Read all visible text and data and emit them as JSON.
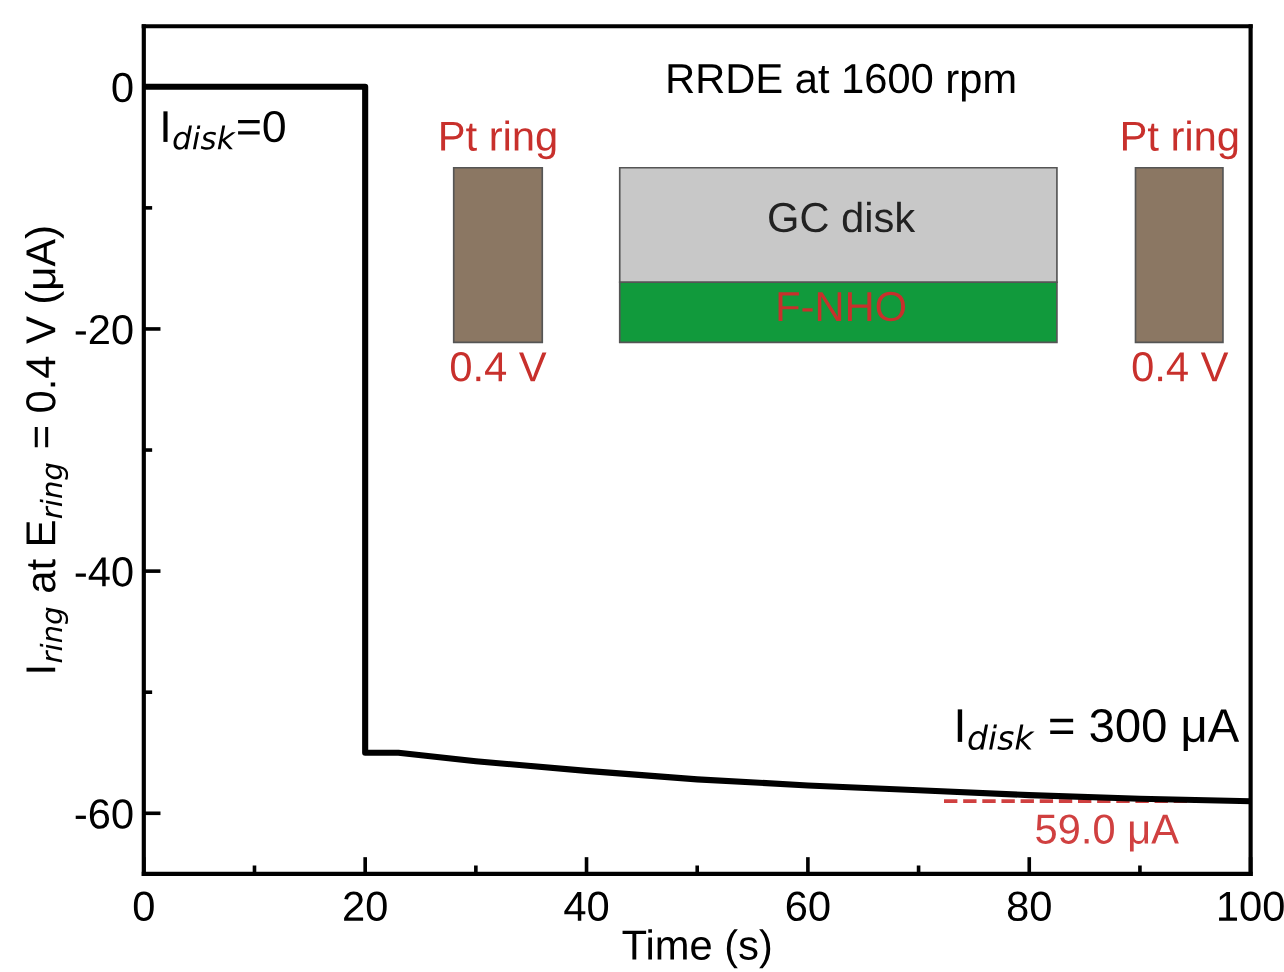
{
  "chart_data": {
    "type": "line",
    "xlabel": "Time (s)",
    "ylabel": "I$_{ring}$ at E$_{ring}$ = 0.4 V (μA)",
    "xlim": [
      0,
      100
    ],
    "ylim": [
      -65,
      5
    ],
    "xticks": [
      0,
      20,
      40,
      60,
      80,
      100
    ],
    "yticks": [
      0,
      -20,
      -40,
      -60
    ],
    "grid": false,
    "legend": false,
    "marker": "none",
    "line_style": "solid",
    "series": [
      {
        "color": "#000000",
        "x": [
          0,
          20,
          20,
          23,
          30,
          40,
          50,
          60,
          70,
          80,
          90,
          100
        ],
        "values": [
          0,
          0,
          -55.0,
          -55.0,
          -55.7,
          -56.5,
          -57.2,
          -57.7,
          -58.1,
          -58.5,
          -58.8,
          -59.0
        ]
      }
    ],
    "ref_lines": [
      {
        "axis": "y",
        "value": -59.0,
        "label": "59.0 μA",
        "color": "#d04040",
        "line_style": "dashed"
      }
    ],
    "annotations": [
      "RRDE at 1600 rpm",
      "I$_{disk}$=0",
      "Pt ring",
      "0.4 V",
      "GC disk",
      "F-NHO",
      "Pt ring",
      "0.4 V",
      "I$_{disk}$ = 300 μA"
    ]
  }
}
